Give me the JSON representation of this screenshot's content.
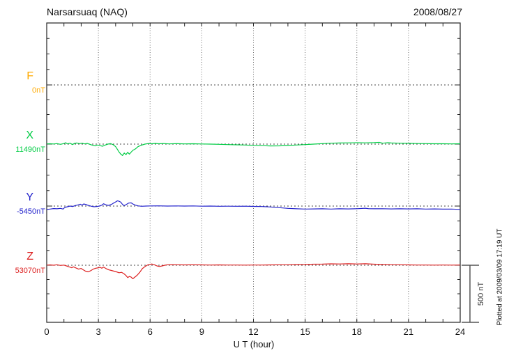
{
  "chart_data": {
    "type": "line",
    "title": "Narsarsuaq (NAQ)",
    "date": "2008/08/27",
    "xlabel": "U T (hour)",
    "xlim": [
      0,
      24
    ],
    "x_ticks": [
      0,
      3,
      6,
      9,
      12,
      15,
      18,
      21,
      24
    ],
    "grid": "dotted vertical lines every 3 h; dotted horizontal line at each trace baseline",
    "legend_position": "left margin, one colored letter + baseline value per trace",
    "scale_bar": {
      "label": "500 nT",
      "nT": 500
    },
    "plotted_at": "Plotted at 2009/03/09 17:19 UT",
    "points_format": "[UT hour, offset in nT from trace baseline]",
    "series": [
      {
        "name": "F",
        "baseline_label": "0nT",
        "baseline_nT": 0,
        "color": "#FFAA00",
        "points": []
      },
      {
        "name": "X",
        "baseline_label": "11490nT",
        "baseline_nT": 11490,
        "color": "#00CC44",
        "points": [
          [
            0,
            2
          ],
          [
            0.2,
            3
          ],
          [
            0.4,
            1
          ],
          [
            0.6,
            4
          ],
          [
            0.8,
            -2
          ],
          [
            1.0,
            5
          ],
          [
            1.1,
            12
          ],
          [
            1.2,
            2
          ],
          [
            1.35,
            8
          ],
          [
            1.5,
            -4
          ],
          [
            1.6,
            6
          ],
          [
            1.75,
            10
          ],
          [
            1.9,
            4
          ],
          [
            2.05,
            8
          ],
          [
            2.2,
            2
          ],
          [
            2.35,
            6
          ],
          [
            2.5,
            -2
          ],
          [
            2.65,
            -10
          ],
          [
            2.8,
            -16
          ],
          [
            2.95,
            -8
          ],
          [
            3.1,
            -14
          ],
          [
            3.25,
            -18
          ],
          [
            3.4,
            -8
          ],
          [
            3.55,
            0
          ],
          [
            3.7,
            4
          ],
          [
            3.85,
            -4
          ],
          [
            4.0,
            -22
          ],
          [
            4.1,
            -45
          ],
          [
            4.2,
            -70
          ],
          [
            4.3,
            -88
          ],
          [
            4.4,
            -100
          ],
          [
            4.5,
            -78
          ],
          [
            4.6,
            -92
          ],
          [
            4.7,
            -72
          ],
          [
            4.8,
            -88
          ],
          [
            4.9,
            -70
          ],
          [
            5.0,
            -55
          ],
          [
            5.15,
            -42
          ],
          [
            5.3,
            -22
          ],
          [
            5.5,
            -10
          ],
          [
            5.7,
            0
          ],
          [
            5.9,
            5
          ],
          [
            6.1,
            3
          ],
          [
            6.3,
            6
          ],
          [
            6.5,
            3
          ],
          [
            6.8,
            5
          ],
          [
            7.1,
            2
          ],
          [
            7.5,
            4
          ],
          [
            8,
            2
          ],
          [
            8.5,
            3
          ],
          [
            9,
            1
          ],
          [
            9.5,
            0
          ],
          [
            10,
            -2
          ],
          [
            10.5,
            -4
          ],
          [
            11,
            -6
          ],
          [
            11.5,
            -8
          ],
          [
            12,
            -11
          ],
          [
            12.5,
            -14
          ],
          [
            13,
            -16
          ],
          [
            13.5,
            -15
          ],
          [
            14,
            -12
          ],
          [
            14.5,
            -8
          ],
          [
            15,
            -4
          ],
          [
            15.5,
            0
          ],
          [
            16,
            4
          ],
          [
            16.5,
            8
          ],
          [
            17,
            10
          ],
          [
            17.5,
            11
          ],
          [
            18,
            12
          ],
          [
            18.5,
            11
          ],
          [
            19,
            13
          ],
          [
            19.3,
            15
          ],
          [
            19.5,
            8
          ],
          [
            19.8,
            12
          ],
          [
            20,
            10
          ],
          [
            20.5,
            8
          ],
          [
            21,
            7
          ],
          [
            21.5,
            5
          ],
          [
            22,
            4
          ],
          [
            22.5,
            3
          ],
          [
            23,
            3
          ],
          [
            23.5,
            2
          ],
          [
            24,
            3
          ]
        ]
      },
      {
        "name": "Y",
        "baseline_label": "-5450nT",
        "baseline_nT": -5450,
        "color": "#2222CC",
        "points": [
          [
            0,
            -30
          ],
          [
            0.2,
            -26
          ],
          [
            0.4,
            -22
          ],
          [
            0.6,
            -24
          ],
          [
            0.8,
            -20
          ],
          [
            0.95,
            -26
          ],
          [
            1.05,
            -12
          ],
          [
            1.2,
            -6
          ],
          [
            1.35,
            0
          ],
          [
            1.5,
            -4
          ],
          [
            1.65,
            4
          ],
          [
            1.8,
            10
          ],
          [
            1.95,
            16
          ],
          [
            2.05,
            8
          ],
          [
            2.15,
            18
          ],
          [
            2.3,
            12
          ],
          [
            2.45,
            4
          ],
          [
            2.6,
            -2
          ],
          [
            2.75,
            -6
          ],
          [
            2.9,
            -4
          ],
          [
            3.05,
            0
          ],
          [
            3.2,
            8
          ],
          [
            3.3,
            20
          ],
          [
            3.45,
            10
          ],
          [
            3.6,
            6
          ],
          [
            3.75,
            14
          ],
          [
            3.9,
            28
          ],
          [
            4.0,
            36
          ],
          [
            4.1,
            46
          ],
          [
            4.2,
            42
          ],
          [
            4.3,
            34
          ],
          [
            4.4,
            14
          ],
          [
            4.5,
            4
          ],
          [
            4.6,
            12
          ],
          [
            4.75,
            26
          ],
          [
            4.9,
            28
          ],
          [
            5.0,
            18
          ],
          [
            5.15,
            8
          ],
          [
            5.3,
            2
          ],
          [
            5.5,
            -2
          ],
          [
            5.75,
            0
          ],
          [
            6,
            1
          ],
          [
            6.5,
            2
          ],
          [
            7,
            0
          ],
          [
            7.5,
            1
          ],
          [
            8,
            0
          ],
          [
            8.5,
            1
          ],
          [
            9,
            -1
          ],
          [
            9.5,
            0
          ],
          [
            10,
            -2
          ],
          [
            10.5,
            -1
          ],
          [
            11,
            -2
          ],
          [
            11.5,
            -1
          ],
          [
            12,
            -3
          ],
          [
            12.5,
            -4
          ],
          [
            13,
            -8
          ],
          [
            13.5,
            -14
          ],
          [
            14,
            -20
          ],
          [
            14.5,
            -24
          ],
          [
            15,
            -26
          ],
          [
            15.5,
            -25
          ],
          [
            16,
            -24
          ],
          [
            16.5,
            -26
          ],
          [
            17,
            -24
          ],
          [
            17.5,
            -25
          ],
          [
            18,
            -23
          ],
          [
            18.5,
            -19
          ],
          [
            18.7,
            -23
          ],
          [
            19,
            -24
          ],
          [
            19.5,
            -23
          ],
          [
            20,
            -25
          ],
          [
            20.5,
            -24
          ],
          [
            21,
            -25
          ],
          [
            21.5,
            -24
          ],
          [
            22,
            -26
          ],
          [
            22.5,
            -25
          ],
          [
            23,
            -27
          ],
          [
            23.5,
            -26
          ],
          [
            24,
            -29
          ]
        ]
      },
      {
        "name": "Z",
        "baseline_label": "53070nT",
        "baseline_nT": 53070,
        "color": "#DD2222",
        "points": [
          [
            0,
            1
          ],
          [
            0.2,
            3
          ],
          [
            0.4,
            0
          ],
          [
            0.6,
            4
          ],
          [
            0.8,
            -2
          ],
          [
            1.0,
            1
          ],
          [
            1.15,
            -6
          ],
          [
            1.3,
            -14
          ],
          [
            1.45,
            -22
          ],
          [
            1.55,
            -14
          ],
          [
            1.7,
            -24
          ],
          [
            1.85,
            -34
          ],
          [
            2.0,
            -28
          ],
          [
            2.1,
            -38
          ],
          [
            2.25,
            -52
          ],
          [
            2.4,
            -58
          ],
          [
            2.55,
            -48
          ],
          [
            2.7,
            -34
          ],
          [
            2.85,
            -26
          ],
          [
            3.0,
            -22
          ],
          [
            3.1,
            -18
          ],
          [
            3.2,
            -26
          ],
          [
            3.3,
            -16
          ],
          [
            3.45,
            -30
          ],
          [
            3.6,
            -40
          ],
          [
            3.75,
            -46
          ],
          [
            3.9,
            -52
          ],
          [
            4.05,
            -58
          ],
          [
            4.2,
            -66
          ],
          [
            4.35,
            -62
          ],
          [
            4.5,
            -76
          ],
          [
            4.6,
            -90
          ],
          [
            4.7,
            -108
          ],
          [
            4.8,
            -98
          ],
          [
            4.9,
            -104
          ],
          [
            5.0,
            -118
          ],
          [
            5.1,
            -106
          ],
          [
            5.25,
            -88
          ],
          [
            5.4,
            -62
          ],
          [
            5.55,
            -30
          ],
          [
            5.7,
            -12
          ],
          [
            5.85,
            2
          ],
          [
            6.0,
            8
          ],
          [
            6.1,
            11
          ],
          [
            6.25,
            4
          ],
          [
            6.4,
            -6
          ],
          [
            6.55,
            -11
          ],
          [
            6.7,
            -6
          ],
          [
            6.85,
            0
          ],
          [
            7.0,
            4
          ],
          [
            7.3,
            5
          ],
          [
            7.6,
            4
          ],
          [
            8,
            3
          ],
          [
            8.5,
            4
          ],
          [
            9,
            3
          ],
          [
            9.5,
            2
          ],
          [
            10,
            3
          ],
          [
            10.5,
            2
          ],
          [
            11,
            2
          ],
          [
            11.5,
            1
          ],
          [
            12,
            2
          ],
          [
            12.5,
            2
          ],
          [
            13,
            3
          ],
          [
            13.5,
            4
          ],
          [
            14,
            4
          ],
          [
            14.5,
            6
          ],
          [
            15,
            7
          ],
          [
            15.5,
            9
          ],
          [
            16,
            10
          ],
          [
            16.5,
            12
          ],
          [
            17,
            11
          ],
          [
            17.5,
            13
          ],
          [
            18,
            11
          ],
          [
            18.5,
            13
          ],
          [
            19,
            9
          ],
          [
            19.5,
            7
          ],
          [
            20,
            5
          ],
          [
            20.5,
            4
          ],
          [
            21,
            3
          ],
          [
            21.5,
            2
          ],
          [
            22,
            2
          ],
          [
            22.5,
            1
          ],
          [
            23,
            2
          ],
          [
            23.5,
            1
          ],
          [
            24,
            2
          ]
        ]
      }
    ]
  }
}
